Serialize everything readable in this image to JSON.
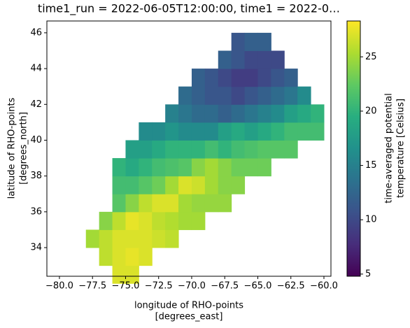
{
  "chart_data": {
    "type": "heatmap",
    "title": "time1_run = 2022-06-05T12:00:00, time1 = 2022-0…",
    "x_label": [
      "longitude of RHO-points",
      "[degrees_east]"
    ],
    "y_label": [
      "latitude of RHO-points",
      "[degrees_north]"
    ],
    "colorbar_label": [
      "time-averaged potential",
      "temperature [Celsius]"
    ],
    "colormap": "viridis",
    "x": [
      -77.5,
      -76.5,
      -75.5,
      -74.5,
      -73.5,
      -72.5,
      -71.5,
      -70.5,
      -69.5,
      -68.5,
      -67.5,
      -66.5,
      -65.5,
      -64.5,
      -63.5,
      -62.5,
      -61.5,
      -60.5
    ],
    "y": [
      32.5,
      33.5,
      34.5,
      35.5,
      36.5,
      37.5,
      38.5,
      39.5,
      40.5,
      41.5,
      42.5,
      43.5,
      44.5,
      45.5
    ],
    "z": [
      [
        null,
        null,
        27,
        27,
        null,
        null,
        null,
        null,
        null,
        null,
        null,
        null,
        null,
        null,
        null,
        null,
        null,
        null
      ],
      [
        null,
        26,
        27,
        27.5,
        27,
        null,
        null,
        null,
        null,
        null,
        null,
        null,
        null,
        null,
        null,
        null,
        null,
        null
      ],
      [
        25,
        26,
        27,
        27,
        27,
        26.5,
        26,
        null,
        null,
        null,
        null,
        null,
        null,
        null,
        null,
        null,
        null,
        null
      ],
      [
        null,
        24,
        26,
        27.5,
        27,
        26,
        25.5,
        25,
        25,
        null,
        null,
        null,
        null,
        null,
        null,
        null,
        null,
        null
      ],
      [
        null,
        null,
        22,
        24,
        26,
        27,
        27,
        25,
        24.5,
        24.5,
        24.5,
        null,
        null,
        null,
        null,
        null,
        null,
        null
      ],
      [
        null,
        null,
        21,
        21,
        22,
        23,
        25,
        27,
        26.5,
        25,
        24,
        24,
        null,
        null,
        null,
        null,
        null,
        null
      ],
      [
        null,
        null,
        20,
        19,
        20,
        21,
        21.5,
        22,
        24,
        25,
        24,
        23,
        23,
        23,
        null,
        null,
        null,
        null
      ],
      [
        null,
        null,
        null,
        18,
        18,
        19,
        20,
        20,
        20,
        21,
        20,
        21,
        21.5,
        22,
        22,
        22,
        null,
        null
      ],
      [
        null,
        null,
        null,
        null,
        16,
        16,
        17,
        16,
        16,
        16,
        18,
        19,
        18,
        19,
        20,
        21,
        21,
        21
      ],
      [
        null,
        null,
        null,
        null,
        null,
        null,
        15,
        14,
        13,
        13,
        12,
        13,
        14,
        15,
        16,
        18,
        19,
        20
      ],
      [
        null,
        null,
        null,
        null,
        null,
        null,
        null,
        13,
        12,
        11,
        11,
        10,
        11,
        12,
        13,
        14,
        16,
        null
      ],
      [
        null,
        null,
        null,
        null,
        null,
        null,
        null,
        null,
        12,
        11,
        10,
        9,
        9,
        10,
        11,
        12,
        null,
        null
      ],
      [
        null,
        null,
        null,
        null,
        null,
        null,
        null,
        null,
        null,
        null,
        12,
        11,
        10,
        10,
        10,
        null,
        null,
        null
      ],
      [
        null,
        null,
        null,
        null,
        null,
        null,
        null,
        null,
        null,
        null,
        null,
        11,
        12,
        12,
        null,
        null,
        null,
        null
      ]
    ],
    "xlim": [
      -80.95,
      -59.47
    ],
    "ylim": [
      32.4,
      46.66
    ],
    "zlim": [
      4.8,
      28.3
    ],
    "xticks": [
      {
        "value": -80,
        "label": "−80.0"
      },
      {
        "value": -77.5,
        "label": "−77.5"
      },
      {
        "value": -75,
        "label": "−75.0"
      },
      {
        "value": -72.5,
        "label": "−72.5"
      },
      {
        "value": -70,
        "label": "−70.0"
      },
      {
        "value": -67.5,
        "label": "−67.5"
      },
      {
        "value": -65,
        "label": "−65.0"
      },
      {
        "value": -62.5,
        "label": "−62.5"
      },
      {
        "value": -60,
        "label": "−60.0"
      }
    ],
    "yticks": [
      34,
      36,
      38,
      40,
      42,
      44,
      46
    ],
    "zticks": [
      5,
      10,
      15,
      20,
      25
    ]
  }
}
